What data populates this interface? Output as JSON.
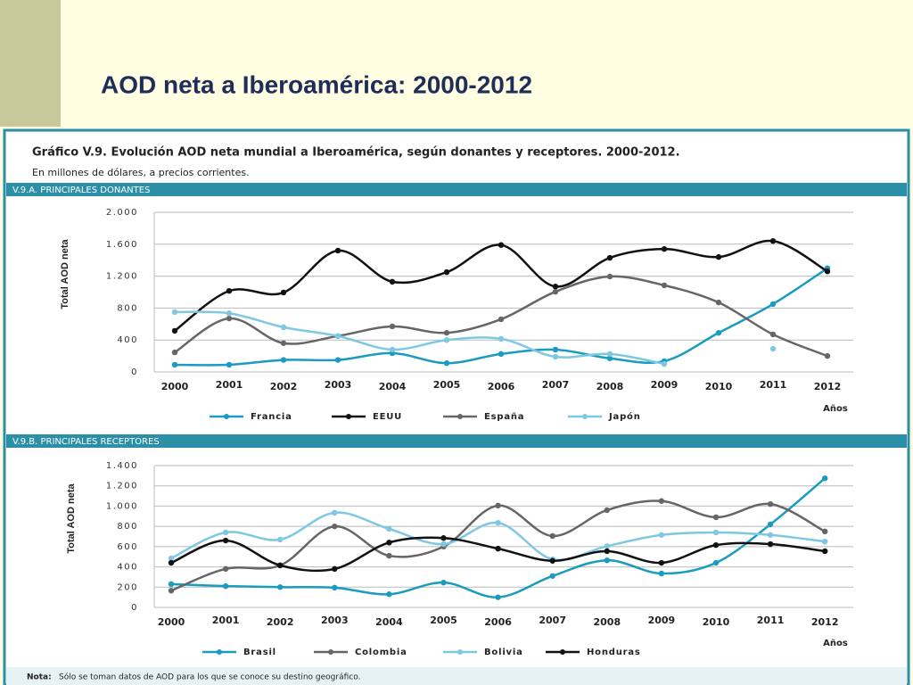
{
  "slide_title": "AOD neta a Iberoamérica: 2000-2012",
  "figure": {
    "title": "Gráfico V.9. Evolución AOD neta mundial a Iberoamérica, según donantes y receptores. 2000-2012.",
    "subtitle": "En millones de dólares, a precios corrientes.",
    "sections": [
      "V.9.A. PRINCIPALES DONANTES",
      "V.9.B. PRINCIPALES RECEPTORES"
    ],
    "note_label": "Nota:",
    "note": "Sólo se toman datos de AOD para los que se conoce su destino geográfico."
  },
  "chart_data": [
    {
      "type": "line",
      "y_label": "Total AOD neta",
      "x_label": "Años",
      "categories": [
        "2000",
        "2001",
        "2002",
        "2003",
        "2004",
        "2005",
        "2006",
        "2007",
        "2008",
        "2009",
        "2010",
        "2011",
        "2012"
      ],
      "ylim": [
        0,
        2000
      ],
      "yticks": [
        0,
        400,
        800,
        {
          "value": 1200,
          "label": "1.200"
        },
        {
          "value": 1600,
          "label": "1.600"
        },
        {
          "value": 2000,
          "label": "2.000"
        }
      ],
      "grid": true,
      "series": [
        {
          "name": "Francia",
          "color": "#1a9bbf",
          "values": [
            90,
            90,
            150,
            150,
            235,
            110,
            225,
            280,
            170,
            135,
            490,
            850,
            1300
          ]
        },
        {
          "name": "EEUU",
          "color": "#111111",
          "values": [
            515,
            1015,
            995,
            1520,
            1130,
            1250,
            1590,
            1070,
            1430,
            1540,
            1440,
            1640,
            1260
          ]
        },
        {
          "name": "España",
          "color": "#666666",
          "values": [
            245,
            670,
            360,
            450,
            570,
            490,
            660,
            1005,
            1195,
            1085,
            870,
            470,
            200
          ]
        },
        {
          "name": "Japón",
          "color": "#7ec8e3",
          "values": [
            750,
            735,
            560,
            450,
            280,
            400,
            415,
            190,
            225,
            100,
            null,
            290,
            null
          ]
        }
      ]
    },
    {
      "type": "line",
      "y_label": "Total AOD neta",
      "x_label": "Años",
      "categories": [
        "2000",
        "2001",
        "2002",
        "2003",
        "2004",
        "2005",
        "2006",
        "2007",
        "2008",
        "2009",
        "2010",
        "2011",
        "2012"
      ],
      "ylim": [
        0,
        1400
      ],
      "yticks": [
        0,
        200,
        400,
        600,
        800,
        {
          "value": 1000,
          "label": "1.000"
        },
        {
          "value": 1200,
          "label": "1.200"
        },
        {
          "value": 1400,
          "label": "1.400"
        }
      ],
      "grid": true,
      "series": [
        {
          "name": "Brasil",
          "color": "#1a9bbf",
          "values": [
            230,
            210,
            200,
            195,
            130,
            245,
            100,
            310,
            465,
            335,
            440,
            820,
            1275
          ]
        },
        {
          "name": "Colombia",
          "color": "#666666",
          "values": [
            165,
            380,
            415,
            800,
            510,
            600,
            1005,
            705,
            960,
            1050,
            890,
            1020,
            750
          ]
        },
        {
          "name": "Bolivia",
          "color": "#7ec8e3",
          "values": [
            485,
            740,
            670,
            935,
            775,
            625,
            835,
            475,
            605,
            715,
            740,
            715,
            650
          ]
        },
        {
          "name": "Honduras",
          "color": "#111111",
          "values": [
            440,
            660,
            415,
            380,
            640,
            685,
            580,
            460,
            555,
            440,
            615,
            625,
            555
          ]
        }
      ]
    }
  ]
}
